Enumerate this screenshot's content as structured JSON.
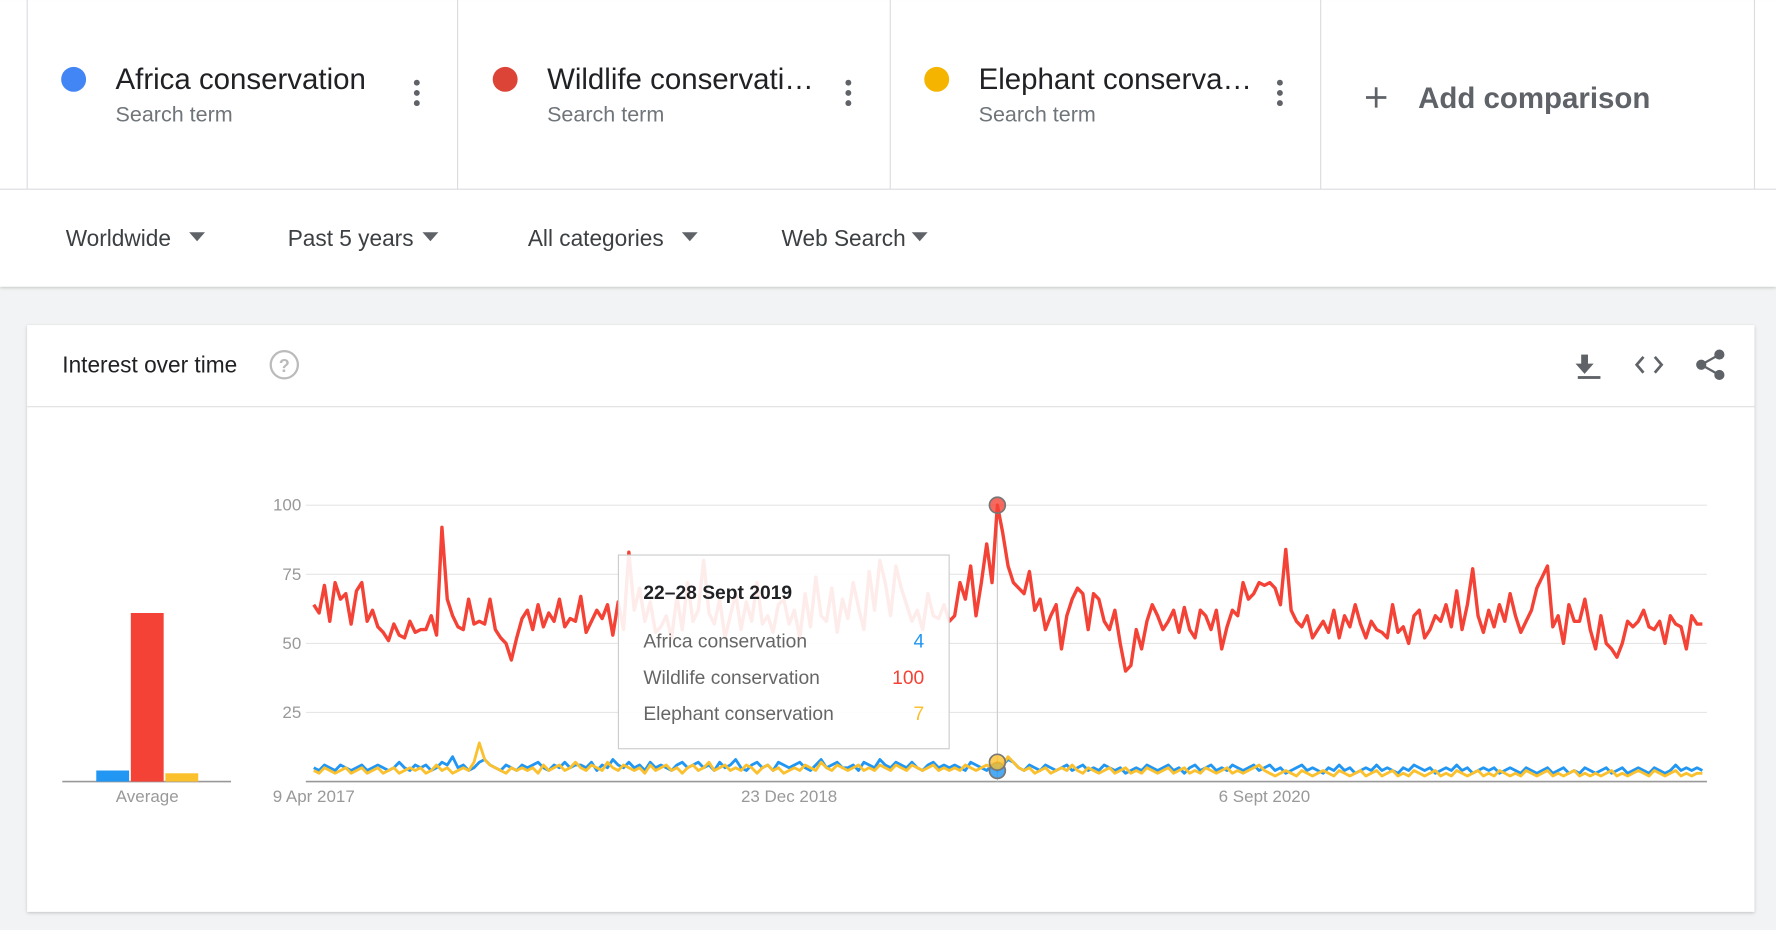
{
  "search_terms": [
    {
      "label": "Africa conservation",
      "sublabel": "Search term",
      "color": "#4285f4"
    },
    {
      "label": "Wildlife conservati…",
      "sublabel": "Search term",
      "color": "#db4437"
    },
    {
      "label": "Elephant conserva…",
      "sublabel": "Search term",
      "color": "#f4b400"
    }
  ],
  "add_comparison": "Add comparison",
  "filters": [
    "Worldwide",
    "Past 5 years",
    "All categories",
    "Web Search"
  ],
  "panel_title": "Interest over time",
  "chart_data": [
    {
      "type": "bar",
      "categories": [
        "Average"
      ],
      "ylim": [
        0,
        100
      ],
      "series": [
        {
          "color": "#2196f3",
          "values": [
            4
          ]
        },
        {
          "color": "#f44336",
          "values": [
            61
          ]
        },
        {
          "color": "#fbc02d",
          "values": [
            3
          ]
        }
      ]
    },
    {
      "type": "line",
      "ylim": [
        0,
        100
      ],
      "yticks": [
        25,
        50,
        75,
        100
      ],
      "grid": true,
      "tooltip_title": "22–28 Sept 2019",
      "highlight_index": 128,
      "categories": [
        "9 Apr 2017",
        null,
        null,
        null,
        null,
        null,
        null,
        null,
        null,
        null,
        null,
        null,
        null,
        null,
        null,
        null,
        null,
        null,
        null,
        null,
        null,
        null,
        null,
        null,
        null,
        null,
        null,
        null,
        null,
        null,
        null,
        null,
        null,
        null,
        null,
        null,
        null,
        null,
        null,
        null,
        null,
        null,
        null,
        null,
        null,
        null,
        null,
        null,
        null,
        null,
        null,
        null,
        null,
        null,
        null,
        null,
        null,
        null,
        null,
        null,
        null,
        null,
        null,
        null,
        null,
        null,
        null,
        null,
        null,
        null,
        null,
        null,
        null,
        null,
        null,
        null,
        null,
        null,
        null,
        null,
        null,
        null,
        null,
        null,
        null,
        null,
        null,
        null,
        null,
        "23 Dec 2018",
        null,
        null,
        null,
        null,
        null,
        null,
        null,
        null,
        null,
        null,
        null,
        null,
        null,
        null,
        null,
        null,
        null,
        null,
        null,
        null,
        null,
        null,
        null,
        null,
        null,
        null,
        null,
        null,
        null,
        null,
        null,
        null,
        null,
        null,
        null,
        null,
        null,
        null,
        null,
        null,
        null,
        null,
        null,
        null,
        null,
        null,
        null,
        null,
        null,
        null,
        null,
        null,
        null,
        null,
        null,
        null,
        null,
        null,
        null,
        null,
        null,
        null,
        null,
        null,
        null,
        null,
        null,
        null,
        null,
        null,
        null,
        null,
        null,
        null,
        null,
        null,
        null,
        null,
        null,
        null,
        null,
        null,
        null,
        null,
        null,
        null,
        null,
        null,
        "6 Sept 2020",
        null,
        null,
        null,
        null,
        null,
        null,
        null,
        null,
        null,
        null,
        null,
        null,
        null,
        null,
        null,
        null,
        null,
        null,
        null,
        null,
        null,
        null,
        null,
        null,
        null,
        null,
        null,
        null,
        null,
        null,
        null,
        null,
        null,
        null,
        null,
        null,
        null,
        null,
        null,
        null,
        null,
        null,
        null,
        null,
        null,
        null,
        null,
        null,
        null,
        null,
        null,
        null,
        null,
        null,
        null,
        null,
        null,
        null,
        null,
        null,
        null,
        null,
        null,
        null,
        null,
        null,
        null,
        null,
        null,
        null,
        null,
        null,
        null,
        null,
        null,
        null,
        null,
        null,
        null,
        null,
        null,
        null
      ],
      "series": [
        {
          "name": "Africa conservation",
          "color": "#2196f3",
          "values": [
            5,
            4,
            6,
            5,
            4,
            6,
            5,
            4,
            5,
            6,
            4,
            5,
            6,
            5,
            4,
            5,
            7,
            5,
            4,
            6,
            5,
            6,
            4,
            5,
            7,
            6,
            9,
            5,
            6,
            4,
            5,
            7,
            8,
            6,
            5,
            4,
            6,
            5,
            4,
            6,
            5,
            6,
            7,
            5,
            4,
            6,
            5,
            7,
            5,
            6,
            6,
            5,
            7,
            4,
            6,
            5,
            8,
            6,
            5,
            7,
            5,
            6,
            4,
            7,
            5,
            6,
            5,
            4,
            6,
            7,
            5,
            6,
            7,
            5,
            6,
            4,
            7,
            5,
            6,
            8,
            5,
            4,
            6,
            7,
            5,
            6,
            4,
            7,
            6,
            5,
            6,
            7,
            5,
            4,
            6,
            8,
            5,
            6,
            7,
            5,
            5,
            6,
            4,
            7,
            6,
            5,
            8,
            6,
            5,
            7,
            6,
            5,
            7,
            5,
            4,
            6,
            7,
            5,
            6,
            5,
            6,
            5,
            4,
            7,
            6,
            5,
            4,
            6,
            4,
            6,
            8,
            7,
            5,
            4,
            6,
            5,
            4,
            6,
            5,
            4,
            5,
            6,
            4,
            5,
            6,
            4,
            5,
            4,
            6,
            5,
            4,
            5,
            3,
            4,
            5,
            4,
            6,
            5,
            4,
            5,
            6,
            4,
            5,
            3,
            5,
            6,
            4,
            5,
            6,
            4,
            5,
            4,
            6,
            5,
            4,
            5,
            6,
            4,
            5,
            6,
            4,
            5,
            3,
            4,
            5,
            6,
            4,
            5,
            4,
            3,
            5,
            4,
            6,
            4,
            5,
            3,
            4,
            5,
            4,
            6,
            4,
            5,
            4,
            3,
            5,
            4,
            6,
            5,
            4,
            5,
            3,
            4,
            5,
            4,
            6,
            4,
            5,
            3,
            4,
            5,
            4,
            5,
            3,
            4,
            5,
            4,
            3,
            5,
            4,
            3,
            4,
            5,
            3,
            4,
            5,
            3,
            4,
            3,
            5,
            4,
            3,
            4,
            5,
            3,
            4,
            5,
            3,
            4,
            5,
            4,
            3,
            5,
            4,
            3,
            4,
            6,
            4,
            5,
            4,
            5,
            4
          ]
        },
        {
          "name": "Wildlife conservation",
          "color": "#f44336",
          "values": [
            64,
            61,
            71,
            58,
            72,
            66,
            68,
            57,
            69,
            72,
            58,
            62,
            56,
            54,
            51,
            57,
            53,
            52,
            58,
            54,
            55,
            55,
            60,
            53,
            92,
            66,
            60,
            56,
            55,
            66,
            57,
            58,
            57,
            66,
            55,
            52,
            50,
            44,
            52,
            59,
            62,
            55,
            64,
            56,
            61,
            58,
            66,
            56,
            59,
            58,
            67,
            54,
            58,
            62,
            59,
            64,
            53,
            65,
            55,
            83,
            62,
            70,
            58,
            65,
            54,
            56,
            60,
            52,
            67,
            55,
            72,
            58,
            62,
            80,
            61,
            57,
            66,
            52,
            60,
            68,
            55,
            65,
            58,
            72,
            57,
            60,
            54,
            64,
            66,
            57,
            62,
            52,
            68,
            56,
            74,
            60,
            58,
            70,
            54,
            66,
            59,
            72,
            63,
            55,
            76,
            62,
            80,
            72,
            60,
            78,
            70,
            64,
            58,
            62,
            55,
            68,
            60,
            59,
            64,
            58,
            60,
            72,
            66,
            78,
            60,
            72,
            86,
            72,
            100,
            90,
            78,
            72,
            70,
            68,
            76,
            62,
            66,
            55,
            60,
            64,
            48,
            60,
            66,
            70,
            68,
            55,
            68,
            66,
            58,
            55,
            62,
            50,
            40,
            42,
            55,
            48,
            58,
            64,
            60,
            55,
            58,
            62,
            54,
            63,
            55,
            52,
            62,
            60,
            55,
            62,
            48,
            56,
            62,
            60,
            72,
            66,
            68,
            72,
            71,
            72,
            70,
            64,
            84,
            62,
            58,
            56,
            60,
            52,
            55,
            58,
            54,
            62,
            52,
            60,
            56,
            64,
            57,
            52,
            58,
            55,
            54,
            52,
            64,
            54,
            56,
            50,
            60,
            62,
            52,
            55,
            60,
            58,
            64,
            56,
            69,
            55,
            64,
            77,
            60,
            54,
            62,
            56,
            64,
            58,
            68,
            60,
            54,
            58,
            62,
            70,
            74,
            78,
            56,
            60,
            50,
            64,
            58,
            58,
            66,
            55,
            48,
            60,
            50,
            48,
            45,
            50,
            58,
            56,
            58,
            62,
            56,
            55,
            58,
            50,
            60,
            57,
            56,
            48,
            60,
            57,
            57
          ]
        },
        {
          "name": "Elephant conservation",
          "color": "#fbc02d",
          "values": [
            4,
            3,
            5,
            4,
            3,
            4,
            5,
            3,
            4,
            5,
            3,
            4,
            5,
            3,
            4,
            5,
            3,
            4,
            5,
            4,
            5,
            3,
            4,
            6,
            4,
            5,
            3,
            4,
            5,
            4,
            7,
            14,
            8,
            6,
            5,
            4,
            3,
            5,
            4,
            5,
            4,
            5,
            3,
            6,
            4,
            5,
            6,
            4,
            5,
            7,
            5,
            4,
            6,
            5,
            4,
            7,
            5,
            4,
            6,
            5,
            4,
            5,
            3,
            6,
            4,
            5,
            6,
            4,
            5,
            3,
            5,
            6,
            4,
            5,
            7,
            4,
            5,
            6,
            4,
            5,
            4,
            6,
            5,
            3,
            5,
            6,
            4,
            5,
            3,
            4,
            5,
            4,
            6,
            5,
            4,
            7,
            5,
            4,
            6,
            5,
            4,
            5,
            6,
            4,
            5,
            4,
            6,
            5,
            4,
            6,
            5,
            4,
            6,
            5,
            4,
            5,
            6,
            4,
            5,
            4,
            5,
            4,
            6,
            5,
            4,
            5,
            6,
            5,
            7,
            6,
            9,
            7,
            5,
            4,
            5,
            3,
            4,
            5,
            3,
            4,
            5,
            4,
            6,
            4,
            3,
            5,
            4,
            3,
            4,
            5,
            3,
            4,
            5,
            3,
            4,
            3,
            5,
            4,
            3,
            4,
            5,
            3,
            4,
            5,
            3,
            4,
            3,
            5,
            4,
            3,
            4,
            5,
            3,
            4,
            3,
            4,
            5,
            6,
            4,
            3,
            2,
            3,
            4,
            3,
            2,
            4,
            3,
            2,
            3,
            4,
            3,
            2,
            4,
            3,
            2,
            3,
            4,
            2,
            3,
            4,
            2,
            3,
            4,
            2,
            3,
            2,
            4,
            3,
            2,
            3,
            4,
            2,
            3,
            2,
            4,
            3,
            2,
            3,
            4,
            2,
            3,
            2,
            4,
            3,
            2,
            3,
            2,
            4,
            3,
            2,
            3,
            4,
            2,
            3,
            2,
            3,
            4,
            2,
            3,
            2,
            3,
            2,
            3,
            4,
            2,
            3,
            2,
            3,
            4,
            3,
            2,
            4,
            3,
            2,
            3,
            4,
            2,
            3,
            2,
            3,
            3
          ]
        }
      ]
    }
  ]
}
